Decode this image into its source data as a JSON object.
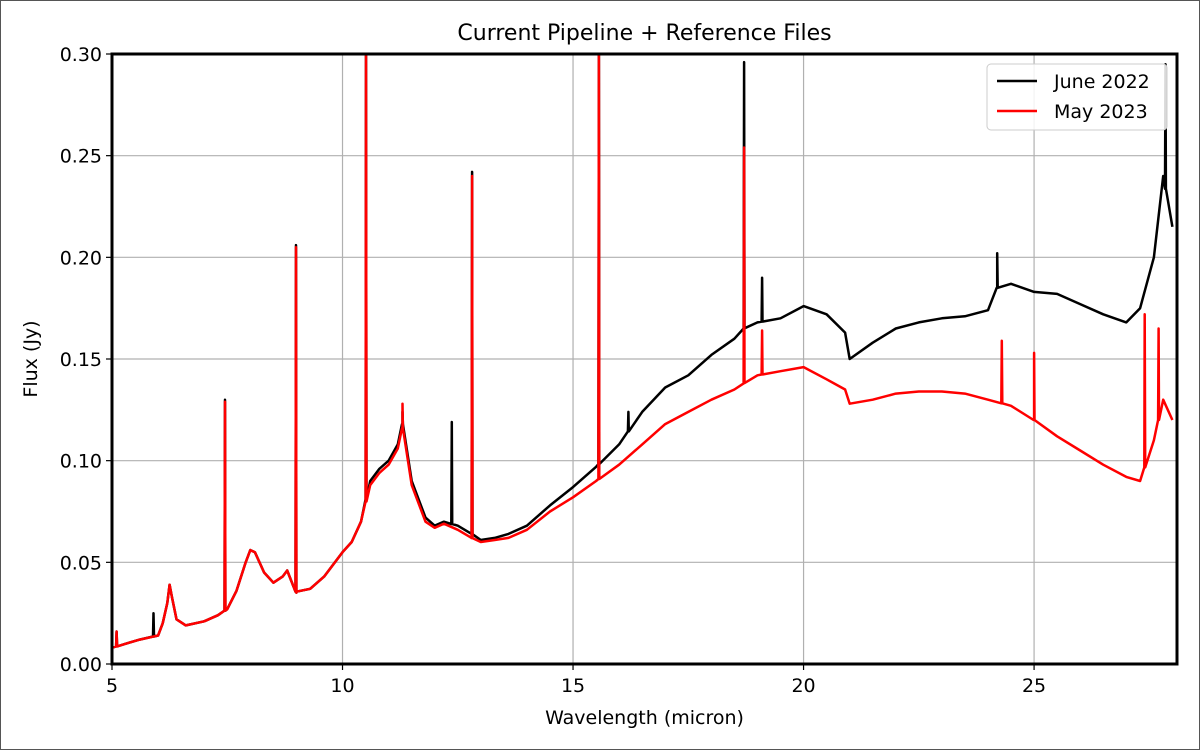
{
  "chart_data": {
    "type": "line",
    "title": "Current Pipeline + Reference Files",
    "xlabel": "Wavelength (micron)",
    "ylabel": "Flux (Jy)",
    "xlim": [
      5,
      28.1
    ],
    "ylim": [
      0,
      0.3
    ],
    "xticks": [
      5,
      10,
      15,
      20,
      25
    ],
    "xtick_labels": [
      "5",
      "10",
      "15",
      "20",
      "25"
    ],
    "yticks": [
      0.0,
      0.05,
      0.1,
      0.15,
      0.2,
      0.25,
      0.3
    ],
    "ytick_labels": [
      "0.00",
      "0.05",
      "0.10",
      "0.15",
      "0.20",
      "0.25",
      "0.30"
    ],
    "grid": true,
    "legend_position": "top-right",
    "series": [
      {
        "name": "June 2022",
        "color": "#000000",
        "x": [
          5.0,
          5.3,
          5.6,
          6.0,
          6.1,
          6.2,
          6.25,
          6.3,
          6.4,
          6.6,
          7.0,
          7.3,
          7.5,
          7.7,
          7.9,
          8.0,
          8.1,
          8.3,
          8.5,
          8.7,
          8.8,
          9.0,
          9.3,
          9.6,
          10.0,
          10.2,
          10.4,
          10.6,
          10.8,
          11.0,
          11.2,
          11.3,
          11.5,
          11.8,
          12.0,
          12.2,
          12.5,
          12.8,
          13.0,
          13.3,
          13.6,
          14.0,
          14.5,
          15.0,
          15.5,
          16.0,
          16.5,
          17.0,
          17.5,
          18.0,
          18.5,
          18.7,
          19.0,
          19.5,
          20.0,
          20.5,
          20.9,
          21.0,
          21.5,
          22.0,
          22.5,
          23.0,
          23.5,
          24.0,
          24.2,
          24.5,
          25.0,
          25.5,
          26.0,
          26.5,
          27.0,
          27.3,
          27.6,
          27.8,
          28.0
        ],
        "y": [
          0.008,
          0.01,
          0.012,
          0.014,
          0.02,
          0.03,
          0.039,
          0.033,
          0.022,
          0.019,
          0.021,
          0.024,
          0.027,
          0.036,
          0.05,
          0.056,
          0.055,
          0.045,
          0.04,
          0.043,
          0.046,
          0.035,
          0.037,
          0.043,
          0.055,
          0.06,
          0.07,
          0.09,
          0.096,
          0.1,
          0.108,
          0.118,
          0.09,
          0.072,
          0.068,
          0.07,
          0.068,
          0.064,
          0.061,
          0.062,
          0.064,
          0.068,
          0.078,
          0.087,
          0.097,
          0.108,
          0.124,
          0.136,
          0.142,
          0.152,
          0.16,
          0.165,
          0.168,
          0.17,
          0.176,
          0.172,
          0.163,
          0.15,
          0.158,
          0.165,
          0.168,
          0.17,
          0.171,
          0.174,
          0.185,
          0.187,
          0.183,
          0.182,
          0.177,
          0.172,
          0.168,
          0.175,
          0.2,
          0.24,
          0.215
        ],
        "spikes": [
          {
            "x": 5.1,
            "y": 0.016
          },
          {
            "x": 5.9,
            "y": 0.025
          },
          {
            "x": 7.45,
            "y": 0.13
          },
          {
            "x": 8.99,
            "y": 0.206
          },
          {
            "x": 10.51,
            "y": 0.3
          },
          {
            "x": 11.3,
            "y": 0.124
          },
          {
            "x": 12.37,
            "y": 0.119
          },
          {
            "x": 12.81,
            "y": 0.242
          },
          {
            "x": 15.56,
            "y": 0.3
          },
          {
            "x": 16.2,
            "y": 0.124
          },
          {
            "x": 18.71,
            "y": 0.296
          },
          {
            "x": 19.1,
            "y": 0.19
          },
          {
            "x": 24.2,
            "y": 0.202
          },
          {
            "x": 27.85,
            "y": 0.295
          }
        ]
      },
      {
        "name": "May 2023",
        "color": "#ff0000",
        "x": [
          5.0,
          5.3,
          5.6,
          6.0,
          6.1,
          6.2,
          6.25,
          6.3,
          6.4,
          6.6,
          7.0,
          7.3,
          7.5,
          7.7,
          7.9,
          8.0,
          8.1,
          8.3,
          8.5,
          8.7,
          8.8,
          9.0,
          9.3,
          9.6,
          10.0,
          10.2,
          10.4,
          10.6,
          10.8,
          11.0,
          11.2,
          11.3,
          11.5,
          11.8,
          12.0,
          12.2,
          12.5,
          12.8,
          13.0,
          13.3,
          13.6,
          14.0,
          14.5,
          15.0,
          15.5,
          16.0,
          16.5,
          17.0,
          17.5,
          18.0,
          18.5,
          18.7,
          19.0,
          19.5,
          20.0,
          20.5,
          20.9,
          21.0,
          21.5,
          22.0,
          22.5,
          23.0,
          23.5,
          24.0,
          24.5,
          25.0,
          25.5,
          26.0,
          26.5,
          27.0,
          27.3,
          27.6,
          27.8,
          28.0
        ],
        "y": [
          0.008,
          0.01,
          0.012,
          0.014,
          0.02,
          0.03,
          0.039,
          0.033,
          0.022,
          0.019,
          0.021,
          0.024,
          0.027,
          0.036,
          0.05,
          0.056,
          0.055,
          0.045,
          0.04,
          0.043,
          0.046,
          0.035,
          0.037,
          0.043,
          0.055,
          0.06,
          0.07,
          0.088,
          0.094,
          0.098,
          0.106,
          0.116,
          0.088,
          0.07,
          0.067,
          0.069,
          0.066,
          0.062,
          0.06,
          0.061,
          0.062,
          0.066,
          0.075,
          0.082,
          0.09,
          0.098,
          0.108,
          0.118,
          0.124,
          0.13,
          0.135,
          0.138,
          0.142,
          0.144,
          0.146,
          0.14,
          0.135,
          0.128,
          0.13,
          0.133,
          0.134,
          0.134,
          0.133,
          0.13,
          0.127,
          0.12,
          0.112,
          0.105,
          0.098,
          0.092,
          0.09,
          0.11,
          0.13,
          0.12
        ],
        "spikes": [
          {
            "x": 5.1,
            "y": 0.016
          },
          {
            "x": 7.45,
            "y": 0.129
          },
          {
            "x": 8.99,
            "y": 0.205
          },
          {
            "x": 10.51,
            "y": 0.3
          },
          {
            "x": 11.3,
            "y": 0.128
          },
          {
            "x": 12.81,
            "y": 0.24
          },
          {
            "x": 15.56,
            "y": 0.3
          },
          {
            "x": 18.71,
            "y": 0.254
          },
          {
            "x": 19.1,
            "y": 0.164
          },
          {
            "x": 24.3,
            "y": 0.159
          },
          {
            "x": 25.0,
            "y": 0.153
          },
          {
            "x": 27.4,
            "y": 0.172
          },
          {
            "x": 27.7,
            "y": 0.165
          }
        ]
      }
    ]
  }
}
